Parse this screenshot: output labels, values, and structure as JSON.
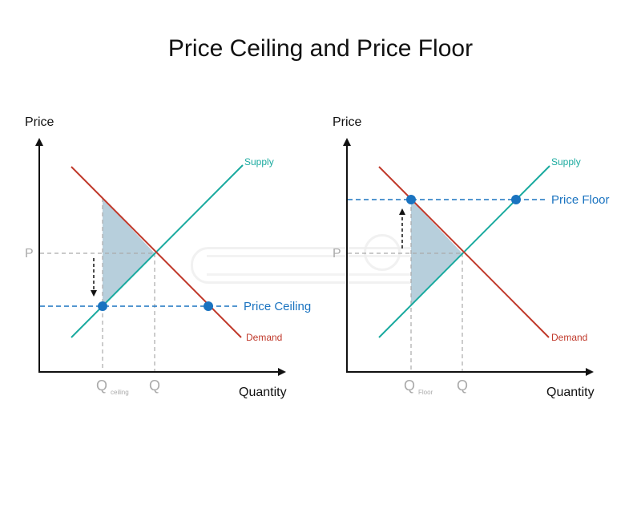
{
  "title": "Price Ceiling and Price Floor",
  "colors": {
    "supply": "#1aaa9f",
    "demand": "#c0392b",
    "control": "#1a73c0",
    "guide": "#aaaaaa",
    "shade": "#b7cfdc",
    "axis": "#111111"
  },
  "chart_data": [
    {
      "type": "diagram",
      "xlabel": "Quantity",
      "ylabel": "Price",
      "curves": {
        "supply": "Supply",
        "demand": "Demand"
      },
      "equilibrium": {
        "price_label": "P",
        "quantity_label": "Q"
      },
      "control_line": {
        "label": "Price Ceiling",
        "position": "below equilibrium"
      },
      "shortage_quantity_label": {
        "main": "Q",
        "sub": "ceiling"
      },
      "arrow": "down"
    },
    {
      "type": "diagram",
      "xlabel": "Quantity",
      "ylabel": "Price",
      "curves": {
        "supply": "Supply",
        "demand": "Demand"
      },
      "equilibrium": {
        "price_label": "P",
        "quantity_label": "Q"
      },
      "control_line": {
        "label": "Price Floor",
        "position": "above equilibrium"
      },
      "shortage_quantity_label": {
        "main": "Q",
        "sub": "Floor"
      },
      "arrow": "up"
    }
  ]
}
